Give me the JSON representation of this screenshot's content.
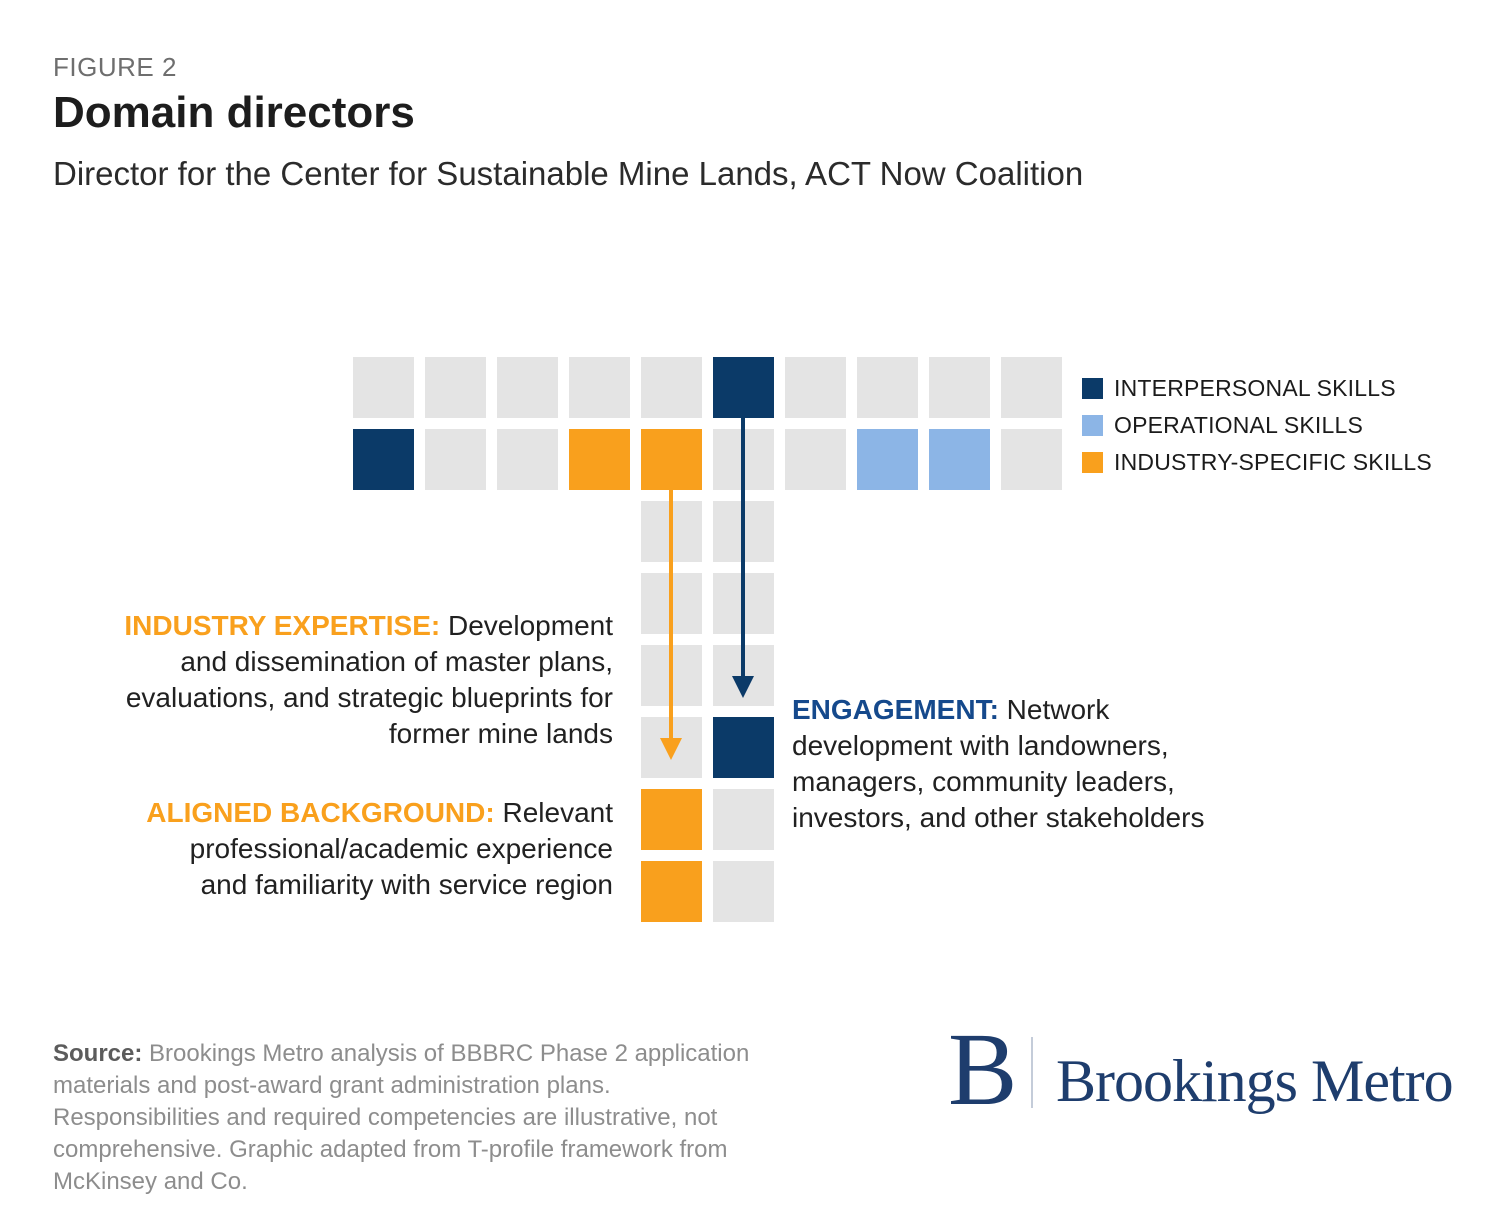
{
  "figure": {
    "label": "FIGURE 2",
    "title": "Domain directors",
    "subtitle": "Director for the Center for Sustainable Mine Lands, ACT Now Coalition"
  },
  "colors": {
    "navy": "#0b3a68",
    "blue": "#8cb5e6",
    "orange": "#f9a01d",
    "gray": "#e4e4e4",
    "label_orange": "#f9a01d",
    "label_navy": "#15498c",
    "logo_navy": "#1e3d6d"
  },
  "legend": [
    {
      "label": "INTERPERSONAL SKILLS",
      "color": "navy"
    },
    {
      "label": "OPERATIONAL SKILLS",
      "color": "blue"
    },
    {
      "label": "INDUSTRY-SPECIFIC SKILLS",
      "color": "orange"
    }
  ],
  "grid": {
    "top_rows": [
      [
        "gray",
        "gray",
        "gray",
        "gray",
        "gray",
        "navy",
        "gray",
        "gray",
        "gray",
        "gray"
      ],
      [
        "navy",
        "gray",
        "gray",
        "orange",
        "orange",
        "gray",
        "gray",
        "blue",
        "blue",
        "gray"
      ]
    ],
    "stem_rows": [
      [
        "gray",
        "gray"
      ],
      [
        "gray",
        "gray"
      ],
      [
        "gray",
        "gray"
      ],
      [
        "gray",
        "navy"
      ],
      [
        "orange",
        "gray"
      ],
      [
        "orange",
        "gray"
      ]
    ]
  },
  "annotations": {
    "industry": {
      "label": "INDUSTRY EXPERTISE:",
      "lines": [
        "Development",
        "and dissemination of master plans,",
        "evaluations, and strategic blueprints for",
        "former mine lands"
      ]
    },
    "aligned": {
      "label": "ALIGNED BACKGROUND:",
      "lines": [
        "Relevant",
        "professional/academic experience",
        "and familiarity with service region"
      ]
    },
    "engagement": {
      "label": "ENGAGEMENT:",
      "lines": [
        "Network",
        "development with landowners,",
        "managers, community leaders,",
        "investors, and other stakeholders"
      ]
    }
  },
  "source": {
    "label": "Source:",
    "lines": [
      "Brookings Metro analysis of BBBRC Phase 2 application",
      "materials and post-award grant administration plans.",
      "Responsibilities and required competencies are illustrative, not",
      "comprehensive. Graphic adapted from T-profile framework from",
      "McKinsey and Co."
    ]
  },
  "logo": {
    "initial": "B",
    "name": "Brookings Metro"
  }
}
